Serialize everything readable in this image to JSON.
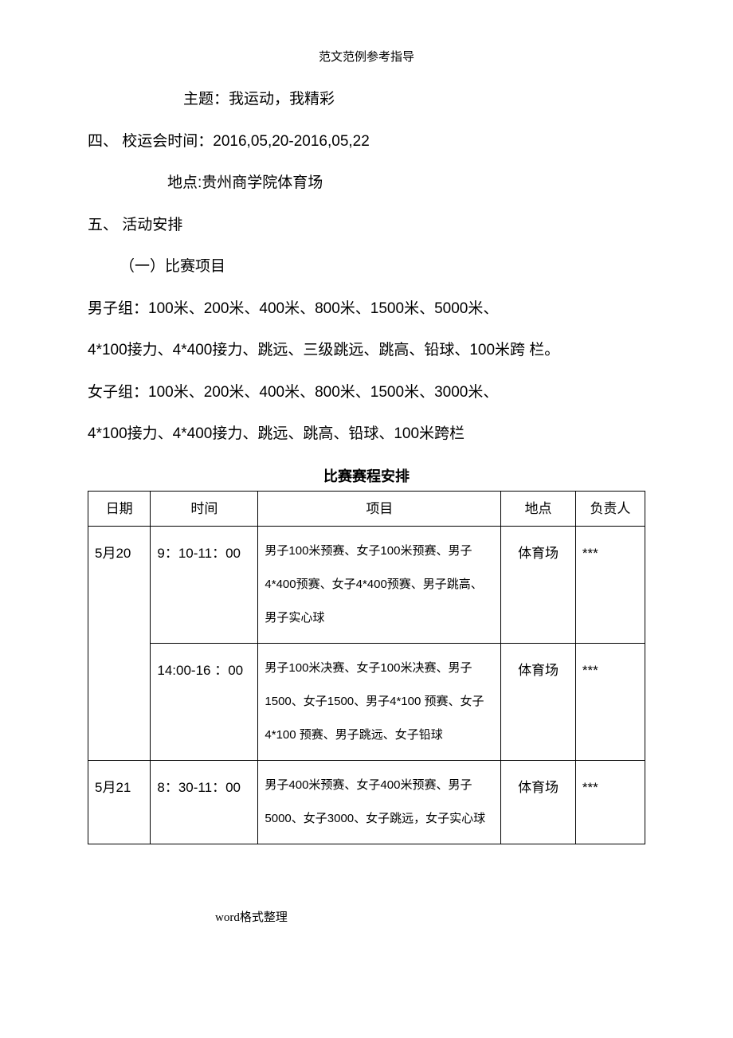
{
  "header": "范文范例参考指导",
  "footer": "word格式整理",
  "lines": {
    "theme": "主题：我运动，我精彩",
    "section4": "四、 校运会时间：2016,05,20-2016,05,22",
    "venue": "地点:贵州商学院体育场",
    "section5": "五、 活动安排",
    "sub1": "（一）比赛项目",
    "men1": "男子组：100米、200米、400米、800米、1500米、5000米、",
    "men2": "4*100接力、4*400接力、跳远、三级跳远、跳高、铅球、100米跨 栏。",
    "women1": "女子组：100米、200米、400米、800米、1500米、3000米、",
    "women2": "4*100接力、4*400接力、跳远、跳高、铅球、100米跨栏"
  },
  "tableCaption": "比赛赛程安排",
  "table": {
    "headers": [
      "日期",
      "时间",
      "项目",
      "地点",
      "负责人"
    ],
    "rows": [
      {
        "date": "5月20",
        "time": "9：10-11：00",
        "event": "男子100米预赛、女子100米预赛、男子4*400预赛、女子4*400预赛、男子跳高、男子实心球",
        "venue": "体育场",
        "person": "***"
      },
      {
        "date": "",
        "time": "14:00-16 ：00",
        "event": "男子100米决赛、女子100米决赛、男子1500、女子1500、男子4*100 预赛、女子 4*100 预赛、男子跳远、女子铅球",
        "venue": "体育场",
        "person": "***"
      },
      {
        "date": "5月21",
        "time": "8：30-11：00",
        "event": "男子400米预赛、女子400米预赛、男子5000、女子3000、女子跳远，女子实心球",
        "venue": "体育场",
        "person": "***"
      }
    ]
  }
}
